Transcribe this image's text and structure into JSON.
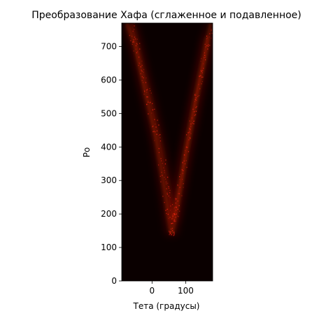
{
  "chart_data": {
    "type": "heatmap",
    "title": "Преобразование Хафа (сглаженное и подавленное)",
    "xlabel": "Тета (градусы)",
    "ylabel": "Ро",
    "xlim": [
      -90,
      180
    ],
    "ylim": [
      0,
      770
    ],
    "x_ticks": [
      0,
      100
    ],
    "x_tick_labels": [
      "0",
      "100"
    ],
    "y_ticks": [
      0,
      100,
      200,
      300,
      400,
      500,
      600,
      700
    ],
    "y_tick_labels": [
      "0",
      "100",
      "200",
      "300",
      "400",
      "500",
      "600",
      "700"
    ],
    "colormap": "black-to-red",
    "background_color": "#0a0000",
    "peak_color": "#ff2a14",
    "bands": [
      {
        "name": "left-branch",
        "points": [
          [
            -75,
            770
          ],
          [
            -50,
            700
          ],
          [
            -20,
            560
          ],
          [
            10,
            430
          ],
          [
            40,
            250
          ],
          [
            55,
            150
          ],
          [
            60,
            140
          ]
        ]
      },
      {
        "name": "right-branch",
        "points": [
          [
            60,
            140
          ],
          [
            75,
            220
          ],
          [
            100,
            380
          ],
          [
            130,
            540
          ],
          [
            155,
            660
          ],
          [
            175,
            770
          ]
        ]
      },
      {
        "name": "left-inner-branch",
        "points": [
          [
            -60,
            770
          ],
          [
            -30,
            640
          ],
          [
            0,
            520
          ],
          [
            30,
            380
          ],
          [
            50,
            260
          ],
          [
            62,
            180
          ]
        ]
      },
      {
        "name": "right-inner-branch",
        "points": [
          [
            62,
            180
          ],
          [
            85,
            300
          ],
          [
            110,
            440
          ],
          [
            140,
            600
          ],
          [
            165,
            730
          ]
        ]
      }
    ]
  }
}
